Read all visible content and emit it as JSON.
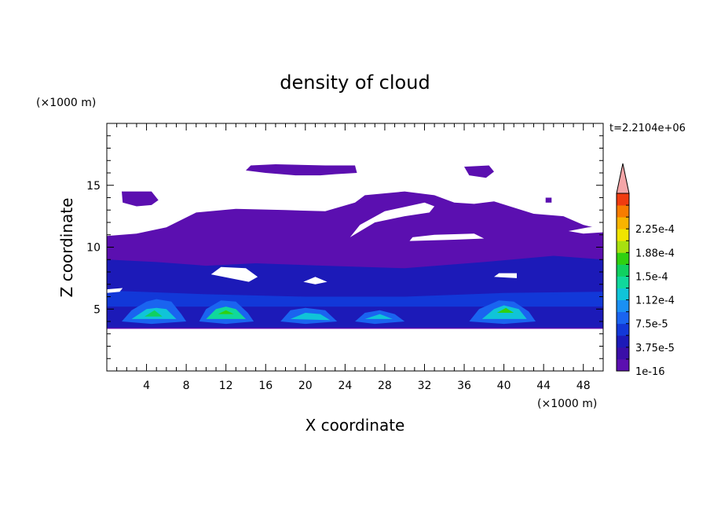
{
  "chart_data": {
    "type": "heatmap",
    "title": "density of cloud",
    "xlabel": "X coordinate",
    "ylabel": "Z coordinate",
    "x_unit": "(×1000 m)",
    "y_unit": "(×1000 m)",
    "time_label": "t=2.2104e+06",
    "xlim": [
      0,
      50
    ],
    "ylim": [
      0,
      20
    ],
    "xticks": [
      "4",
      "8",
      "12",
      "16",
      "20",
      "24",
      "28",
      "32",
      "36",
      "40",
      "44",
      "48"
    ],
    "yticks": [
      "5",
      "10",
      "15"
    ],
    "colorbar": {
      "labels": [
        "1e-16",
        "3.75e-5",
        "7.5e-5",
        "1.12e-4",
        "1.5e-4",
        "1.88e-4",
        "2.25e-4"
      ],
      "levels": [
        1e-16,
        1.875e-05,
        3.75e-05,
        5.625e-05,
        7.5e-05,
        9.375e-05,
        0.0001125,
        0.00013125,
        0.00015,
        0.00016875,
        0.0001875,
        0.00020625,
        0.000225,
        0.00024375,
        0.0002625
      ],
      "colors": [
        "#5b0fb0",
        "#3a0ea8",
        "#1c1ab8",
        "#1238d8",
        "#1a64f0",
        "#1a90f4",
        "#10c4d8",
        "#10d89c",
        "#10d060",
        "#30d010",
        "#a8e010",
        "#f0e400",
        "#f8b400",
        "#f87c00",
        "#f03c10"
      ],
      "extend_color": "#f4a6a8"
    },
    "regions": [
      {
        "level": 0,
        "outline": [
          [
            0,
            10.9
          ],
          [
            3,
            11.1
          ],
          [
            6,
            11.6
          ],
          [
            9,
            12.8
          ],
          [
            13,
            13.1
          ],
          [
            18,
            13.0
          ],
          [
            22,
            12.9
          ],
          [
            25,
            13.6
          ],
          [
            26,
            14.2
          ],
          [
            30,
            14.5
          ],
          [
            33,
            14.2
          ],
          [
            35,
            13.6
          ],
          [
            37,
            13.5
          ],
          [
            39,
            13.7
          ],
          [
            41,
            13.2
          ],
          [
            43,
            12.7
          ],
          [
            46,
            12.5
          ],
          [
            48,
            11.8
          ],
          [
            49,
            11.6
          ],
          [
            50,
            11.6
          ],
          [
            50,
            3.4
          ],
          [
            0,
            3.4
          ],
          [
            0,
            6.7
          ],
          [
            -0.5,
            7
          ],
          [
            0,
            7.5
          ]
        ]
      },
      {
        "level": 0,
        "outline": [
          [
            14,
            16.2
          ],
          [
            14.5,
            16.6
          ],
          [
            17,
            16.7
          ],
          [
            22,
            16.6
          ],
          [
            25,
            16.6
          ],
          [
            25.2,
            16.0
          ],
          [
            23,
            15.9
          ],
          [
            21.5,
            15.8
          ],
          [
            19,
            15.8
          ],
          [
            16,
            16.0
          ]
        ]
      },
      {
        "level": 0,
        "outline": [
          [
            36,
            16.5
          ],
          [
            38.5,
            16.6
          ],
          [
            39,
            16.1
          ],
          [
            38.2,
            15.6
          ],
          [
            36.5,
            15.8
          ]
        ]
      },
      {
        "level": 0,
        "outline": [
          [
            1.5,
            14.5
          ],
          [
            4.5,
            14.5
          ],
          [
            5.2,
            13.8
          ],
          [
            4.5,
            13.4
          ],
          [
            3,
            13.3
          ],
          [
            1.6,
            13.6
          ]
        ]
      },
      {
        "level": 0,
        "outline": [
          [
            44.2,
            14.0
          ],
          [
            44.8,
            14.0
          ],
          [
            44.8,
            13.6
          ],
          [
            44.2,
            13.6
          ]
        ]
      },
      {
        "level": 2,
        "outline": [
          [
            0,
            9
          ],
          [
            5,
            8.8
          ],
          [
            10,
            8.5
          ],
          [
            15,
            8.7
          ],
          [
            22,
            8.5
          ],
          [
            30,
            8.3
          ],
          [
            38,
            8.8
          ],
          [
            45,
            9.3
          ],
          [
            50,
            9.0
          ],
          [
            50,
            4.8
          ],
          [
            0,
            4.8
          ]
        ]
      },
      {
        "level": 3,
        "outline": [
          [
            0,
            6.5
          ],
          [
            10,
            6.2
          ],
          [
            20,
            6.0
          ],
          [
            30,
            6.0
          ],
          [
            40,
            6.3
          ],
          [
            50,
            6.4
          ],
          [
            50,
            4.6
          ],
          [
            0,
            4.6
          ]
        ]
      },
      {
        "level": 2,
        "outline": [
          [
            0,
            5.2
          ],
          [
            50,
            5.2
          ],
          [
            50,
            3.5
          ],
          [
            0,
            3.5
          ]
        ]
      },
      {
        "level": 4,
        "outline": [
          [
            1.5,
            4.0
          ],
          [
            2.5,
            4.9
          ],
          [
            4,
            5.6
          ],
          [
            5,
            5.8
          ],
          [
            6.5,
            5.6
          ],
          [
            7.5,
            4.6
          ],
          [
            8,
            4.0
          ],
          [
            4.5,
            3.8
          ]
        ]
      },
      {
        "level": 6,
        "outline": [
          [
            2.5,
            4.2
          ],
          [
            4,
            5.0
          ],
          [
            5,
            5.1
          ],
          [
            6,
            5.0
          ],
          [
            7,
            4.2
          ]
        ]
      },
      {
        "level": 8,
        "outline": [
          [
            3.8,
            4.4
          ],
          [
            4.8,
            4.9
          ],
          [
            5.6,
            4.4
          ]
        ]
      },
      {
        "level": 4,
        "outline": [
          [
            9.3,
            4.0
          ],
          [
            10,
            5.0
          ],
          [
            11.5,
            5.7
          ],
          [
            13,
            5.6
          ],
          [
            14.2,
            4.7
          ],
          [
            14.8,
            4.0
          ],
          [
            12,
            3.8
          ]
        ]
      },
      {
        "level": 7,
        "outline": [
          [
            10,
            4.2
          ],
          [
            11,
            5.0
          ],
          [
            12,
            5.2
          ],
          [
            13,
            5.0
          ],
          [
            14,
            4.2
          ]
        ]
      },
      {
        "level": 9,
        "outline": [
          [
            11.2,
            4.6
          ],
          [
            12,
            4.9
          ],
          [
            12.8,
            4.6
          ]
        ]
      },
      {
        "level": 4,
        "outline": [
          [
            17.5,
            4.0
          ],
          [
            18.5,
            4.9
          ],
          [
            20,
            5.1
          ],
          [
            22,
            4.9
          ],
          [
            23.2,
            4.0
          ],
          [
            20,
            3.8
          ]
        ]
      },
      {
        "level": 6,
        "outline": [
          [
            18.5,
            4.2
          ],
          [
            20,
            4.7
          ],
          [
            21.5,
            4.6
          ],
          [
            22.5,
            4.1
          ]
        ]
      },
      {
        "level": 4,
        "outline": [
          [
            25,
            4.0
          ],
          [
            26,
            4.7
          ],
          [
            27.5,
            4.9
          ],
          [
            29,
            4.6
          ],
          [
            30,
            4.0
          ],
          [
            27,
            3.8
          ]
        ]
      },
      {
        "level": 6,
        "outline": [
          [
            26,
            4.2
          ],
          [
            27.5,
            4.6
          ],
          [
            28.8,
            4.2
          ]
        ]
      },
      {
        "level": 4,
        "outline": [
          [
            36.5,
            4.0
          ],
          [
            37.5,
            5.0
          ],
          [
            39.5,
            5.7
          ],
          [
            41,
            5.6
          ],
          [
            42.5,
            4.8
          ],
          [
            43.2,
            4.0
          ],
          [
            40,
            3.8
          ]
        ]
      },
      {
        "level": 6,
        "outline": [
          [
            37.8,
            4.2
          ],
          [
            39,
            5.0
          ],
          [
            40,
            5.3
          ],
          [
            41.5,
            5.0
          ],
          [
            42.3,
            4.2
          ]
        ]
      },
      {
        "level": 9,
        "outline": [
          [
            39.3,
            4.7
          ],
          [
            40.2,
            5.1
          ],
          [
            41,
            4.7
          ]
        ]
      }
    ],
    "gaps": [
      {
        "outline": [
          [
            24.5,
            10.8
          ],
          [
            27,
            12.0
          ],
          [
            30,
            12.5
          ],
          [
            32.5,
            12.8
          ],
          [
            33,
            13.3
          ],
          [
            32,
            13.6
          ],
          [
            28,
            12.9
          ],
          [
            25.5,
            11.8
          ]
        ]
      },
      {
        "outline": [
          [
            30.5,
            10.5
          ],
          [
            35,
            10.6
          ],
          [
            38,
            10.7
          ],
          [
            37,
            11.1
          ],
          [
            33,
            11.0
          ],
          [
            30.8,
            10.8
          ]
        ]
      },
      {
        "outline": [
          [
            10.5,
            7.8
          ],
          [
            13,
            7.4
          ],
          [
            14.3,
            7.2
          ],
          [
            15.2,
            7.6
          ],
          [
            14.0,
            8.3
          ],
          [
            11.5,
            8.4
          ]
        ]
      },
      {
        "outline": [
          [
            19.8,
            7.2
          ],
          [
            21,
            7.0
          ],
          [
            22.2,
            7.2
          ],
          [
            21,
            7.6
          ]
        ]
      },
      {
        "outline": [
          [
            0,
            6.6
          ],
          [
            1.6,
            6.7
          ],
          [
            1.3,
            6.4
          ],
          [
            0,
            6.3
          ]
        ]
      },
      {
        "outline": [
          [
            39,
            7.6
          ],
          [
            41.3,
            7.5
          ],
          [
            41.3,
            7.9
          ],
          [
            39.5,
            7.9
          ]
        ]
      },
      {
        "outline": [
          [
            46.5,
            11.3
          ],
          [
            48.5,
            11.6
          ],
          [
            50,
            11.7
          ],
          [
            50,
            11.2
          ],
          [
            48,
            11.1
          ]
        ]
      }
    ]
  }
}
